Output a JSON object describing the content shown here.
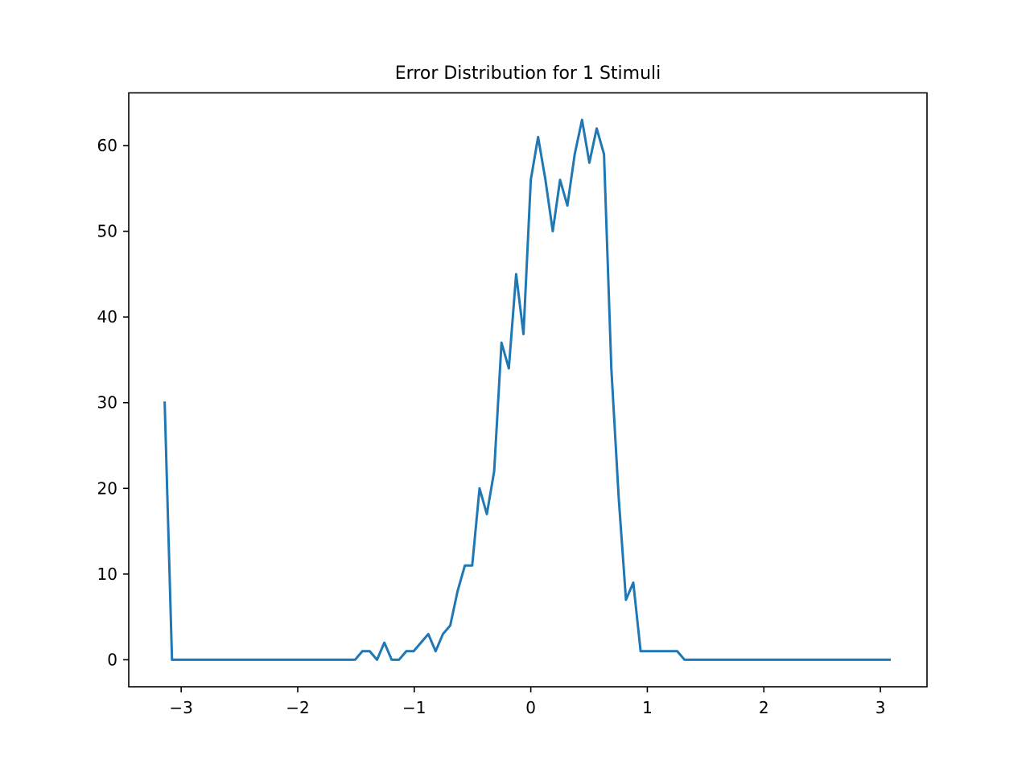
{
  "chart_data": {
    "type": "line",
    "title": "Error Distribution for 1 Stimuli",
    "xlabel": "",
    "ylabel": "",
    "xlim": [
      -3.45,
      3.4
    ],
    "ylim": [
      -3.15,
      66.15
    ],
    "xticks": [
      -3,
      -2,
      -1,
      0,
      1,
      2,
      3
    ],
    "xtick_labels": [
      "−3",
      "−2",
      "−1",
      "0",
      "1",
      "2",
      "3"
    ],
    "yticks": [
      0,
      10,
      20,
      30,
      40,
      50,
      60
    ],
    "ytick_labels": [
      "0",
      "10",
      "20",
      "30",
      "40",
      "50",
      "60"
    ],
    "grid": false,
    "legend": "none",
    "series": [
      {
        "color": "#1f77b4",
        "x": [
          -3.1416,
          -3.0788,
          -3.0159,
          -2.9531,
          -2.8903,
          -2.8274,
          -2.7646,
          -2.7018,
          -2.6389,
          -2.5761,
          -2.5133,
          -2.4504,
          -2.3876,
          -2.3248,
          -2.2619,
          -2.1991,
          -2.1363,
          -2.0735,
          -2.0106,
          -1.9478,
          -1.885,
          -1.8221,
          -1.7593,
          -1.6965,
          -1.6336,
          -1.5708,
          -1.508,
          -1.4451,
          -1.3823,
          -1.3195,
          -1.2566,
          -1.1938,
          -1.131,
          -1.0681,
          -1.0053,
          -0.9425,
          -0.8796,
          -0.8168,
          -0.754,
          -0.6912,
          -0.6283,
          -0.5655,
          -0.5027,
          -0.4398,
          -0.377,
          -0.3142,
          -0.2513,
          -0.1885,
          -0.1257,
          -0.0628,
          0.0,
          0.0628,
          0.1257,
          0.1885,
          0.2513,
          0.3142,
          0.377,
          0.4398,
          0.5027,
          0.5655,
          0.6283,
          0.6912,
          0.754,
          0.8168,
          0.8796,
          0.9425,
          1.0053,
          1.0681,
          1.131,
          1.1938,
          1.2566,
          1.3195,
          1.3823,
          1.4451,
          1.508,
          1.5708,
          1.6336,
          1.6965,
          1.7593,
          1.8221,
          1.885,
          1.9478,
          2.0106,
          2.0735,
          2.1363,
          2.1991,
          2.2619,
          2.3248,
          2.3876,
          2.4504,
          2.5133,
          2.5761,
          2.6389,
          2.7018,
          2.7646,
          2.8274,
          2.8903,
          2.9531,
          3.0159,
          3.0788
        ],
        "y": [
          30,
          0,
          0,
          0,
          0,
          0,
          0,
          0,
          0,
          0,
          0,
          0,
          0,
          0,
          0,
          0,
          0,
          0,
          0,
          0,
          0,
          0,
          0,
          0,
          0,
          0,
          0,
          1,
          1,
          0,
          2,
          0,
          0,
          1,
          1,
          2,
          3,
          1,
          3,
          4,
          8,
          11,
          11,
          20,
          17,
          22,
          37,
          34,
          45,
          38,
          56,
          61,
          56,
          50,
          56,
          53,
          59,
          63,
          58,
          62,
          59,
          34,
          19,
          7,
          9,
          1,
          1,
          1,
          1,
          1,
          1,
          0,
          0,
          0,
          0,
          0,
          0,
          0,
          0,
          0,
          0,
          0,
          0,
          0,
          0,
          0,
          0,
          0,
          0,
          0,
          0,
          0,
          0,
          0,
          0,
          0,
          0,
          0,
          0,
          0
        ]
      }
    ]
  }
}
